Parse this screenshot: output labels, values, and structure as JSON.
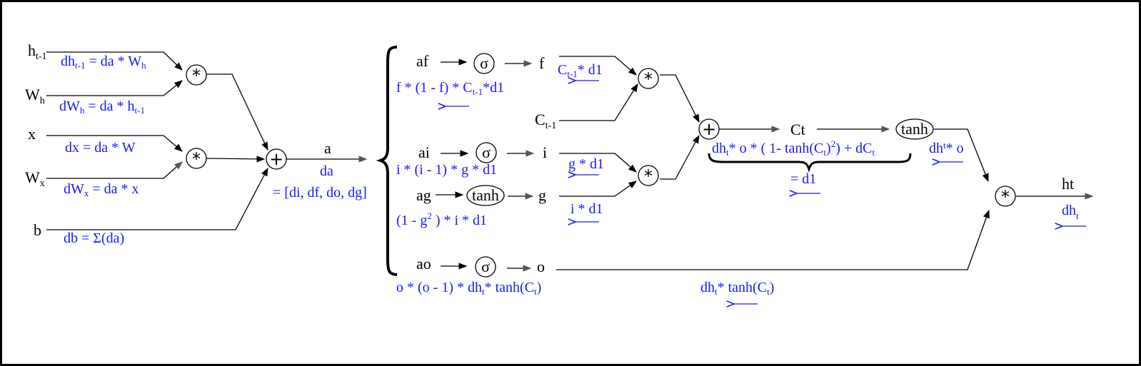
{
  "inputs": {
    "h": "h",
    "h_sub": "t-1",
    "wh": "W",
    "wh_sub": "h",
    "x": "x",
    "wx": "W",
    "wx_sub": "x",
    "b": "b"
  },
  "grads_in": {
    "dh_a": "dh",
    "dh_sub": "t-1",
    "dh_b": " = da * W",
    "dh_sub2": "h",
    "dwh_a": "dW",
    "dwh_sub": "h",
    "dwh_b": " = da * h",
    "dwh_sub2": "t-1",
    "dx": "dx  = da * W",
    "dwx_a": "dW",
    "dwx_sub": "x",
    "dwx_b": "  = da * x",
    "db": "db = Σ(da)"
  },
  "ops": {
    "mul": "*",
    "add": "+",
    "sigma": "σ",
    "tanh": "tanh"
  },
  "a_node": {
    "a": "a",
    "da": "da",
    "da_split": "= [di, df, do, dg]"
  },
  "gates": {
    "af": "af",
    "f": "f",
    "ai": "ai",
    "i": "i",
    "ag": "ag",
    "g": "g",
    "ao": "ao",
    "o": "o",
    "C": "C",
    "C_sub": "t-1",
    "Ct": "Ct",
    "ht": "ht"
  },
  "gate_grads": {
    "daf_a": "f * (1 - f) * C",
    "daf_sub": "t-1",
    "daf_b": "*d1",
    "dai": "i * (i - 1) * g * d1",
    "dag_a": "(1 - g",
    "dag_sup": "2",
    "dag_b": " ) * i * d1",
    "dao_a": "o * (o - 1) * dh",
    "dao_sub": "t",
    "dao_b": "* tanh(C",
    "dao_sub2": "t",
    "dao_c": ")"
  },
  "state_grads": {
    "df_a": "C",
    "df_sub": "t-1",
    "df_b": "* d1",
    "dg": "g * d1",
    "di": "i * d1",
    "dC_a": "dh",
    "dC_sub": "t",
    "dC_b": "* o * ( 1- tanh(C",
    "dC_sub2": "t",
    "dC_b2": ")",
    "dC_sup": "2",
    "dC_c": ") + dC",
    "dC_sub3": "t",
    "d1": "= d1",
    "dtanh_a": "dh",
    "dtanh_sub": "t",
    "dtanh_b": "* o",
    "do_a": "dh",
    "do_sub": "t",
    "do_b": "* tanh(C",
    "do_sub2": "t",
    "do_c": ")",
    "dht_a": "dh",
    "dht_sub": "t"
  }
}
